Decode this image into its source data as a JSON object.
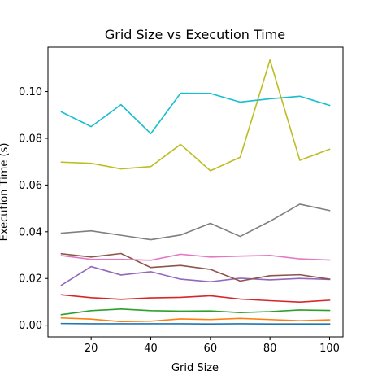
{
  "chart_data": {
    "type": "line",
    "title": "Grid Size vs Execution Time",
    "xlabel": "Grid Size",
    "ylabel": "Execution Time (s)",
    "xlim": [
      5.5,
      104.5
    ],
    "ylim": [
      -0.005,
      0.119
    ],
    "xticks": [
      20,
      40,
      60,
      80,
      100
    ],
    "yticks": [
      0.0,
      0.02,
      0.04,
      0.06,
      0.08,
      0.1
    ],
    "ytick_labels": [
      "0.00",
      "0.02",
      "0.04",
      "0.06",
      "0.08",
      "0.10"
    ],
    "grid": false,
    "x": [
      10,
      20,
      30,
      40,
      50,
      60,
      70,
      80,
      90,
      100
    ],
    "series": [
      {
        "color": "#1f77b4",
        "values": [
          0.0007,
          0.0006,
          0.0006,
          0.0006,
          0.0006,
          0.0005,
          0.0006,
          0.0005,
          0.0005,
          0.0005
        ]
      },
      {
        "color": "#ff7f0e",
        "values": [
          0.0031,
          0.0026,
          0.0015,
          0.0017,
          0.0027,
          0.0024,
          0.0029,
          0.0024,
          0.0019,
          0.0023
        ]
      },
      {
        "color": "#2ca02c",
        "values": [
          0.0045,
          0.0062,
          0.0069,
          0.0062,
          0.006,
          0.0061,
          0.0054,
          0.0058,
          0.0065,
          0.0063
        ]
      },
      {
        "color": "#d62728",
        "values": [
          0.013,
          0.0118,
          0.0111,
          0.0117,
          0.0119,
          0.0126,
          0.0112,
          0.0105,
          0.0099,
          0.0107
        ]
      },
      {
        "color": "#9467bd",
        "values": [
          0.0171,
          0.0251,
          0.0215,
          0.0229,
          0.0197,
          0.0186,
          0.0201,
          0.0194,
          0.02,
          0.0196
        ]
      },
      {
        "color": "#8c564b",
        "values": [
          0.0306,
          0.0292,
          0.0307,
          0.0247,
          0.0256,
          0.0239,
          0.0189,
          0.0212,
          0.0216,
          0.0197
        ]
      },
      {
        "color": "#e377c2",
        "values": [
          0.0298,
          0.0282,
          0.0282,
          0.0278,
          0.0304,
          0.0292,
          0.0296,
          0.0299,
          0.0284,
          0.0279
        ]
      },
      {
        "color": "#7f7f7f",
        "values": [
          0.0394,
          0.0404,
          0.0385,
          0.0366,
          0.0386,
          0.0436,
          0.038,
          0.0445,
          0.0518,
          0.0491
        ]
      },
      {
        "color": "#bcbd22",
        "values": [
          0.0698,
          0.0693,
          0.0669,
          0.0679,
          0.0774,
          0.0661,
          0.0719,
          0.1135,
          0.0706,
          0.0753
        ]
      },
      {
        "color": "#17becf",
        "values": [
          0.0913,
          0.085,
          0.0944,
          0.082,
          0.0993,
          0.0992,
          0.0955,
          0.0969,
          0.098,
          0.0941
        ]
      }
    ]
  }
}
